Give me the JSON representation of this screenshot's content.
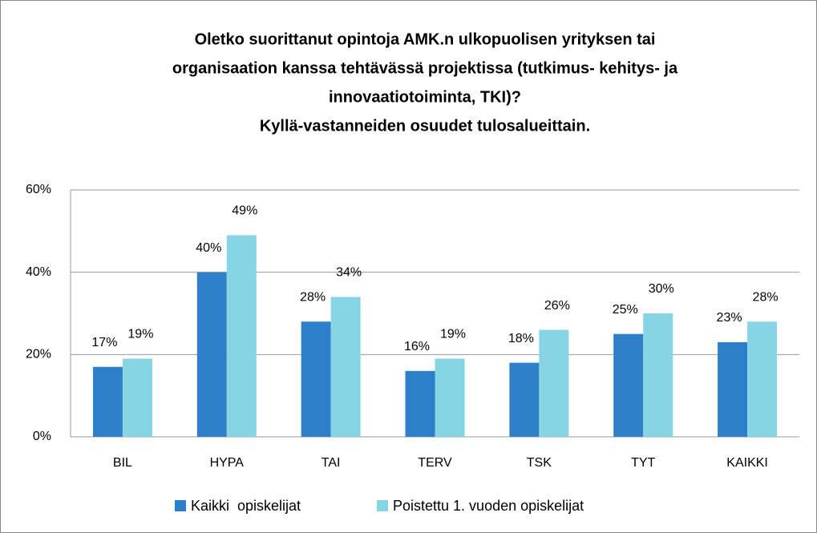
{
  "chart_data": {
    "type": "bar",
    "title": [
      "Oletko suorittanut opintoja AMK.n ulkopuolisen yrityksen tai",
      "organisaation kanssa tehtävässä projektissa (tutkimus- kehitys- ja",
      "innovaatiotoiminta, TKI)?",
      "Kyllä-vastanneiden osuudet tulosalueittain."
    ],
    "categories": [
      "BIL",
      "HYPA",
      "TAI",
      "TERV",
      "TSK",
      "TYT",
      "KAIKKI"
    ],
    "series": [
      {
        "name": "Kaikki  opiskelijat",
        "color": "#2e7fc9",
        "values": [
          17,
          40,
          28,
          16,
          18,
          25,
          23
        ],
        "value_labels": [
          "17%",
          "40%",
          "28%",
          "16%",
          "18%",
          "25%",
          "23%"
        ]
      },
      {
        "name": "Poistettu 1. vuoden opiskelijat",
        "color": "#86d4e4",
        "values": [
          19,
          49,
          34,
          19,
          26,
          30,
          28
        ],
        "value_labels": [
          "19%",
          "49%",
          "34%",
          "19%",
          "26%",
          "30%",
          "28%"
        ]
      }
    ],
    "ylim": [
      0,
      60
    ],
    "yticks": [
      {
        "value": 0,
        "label": "0%"
      },
      {
        "value": 20,
        "label": "20%"
      },
      {
        "value": 40,
        "label": "40%"
      },
      {
        "value": 60,
        "label": "60%"
      }
    ],
    "grid": true,
    "legend": "bottom"
  }
}
